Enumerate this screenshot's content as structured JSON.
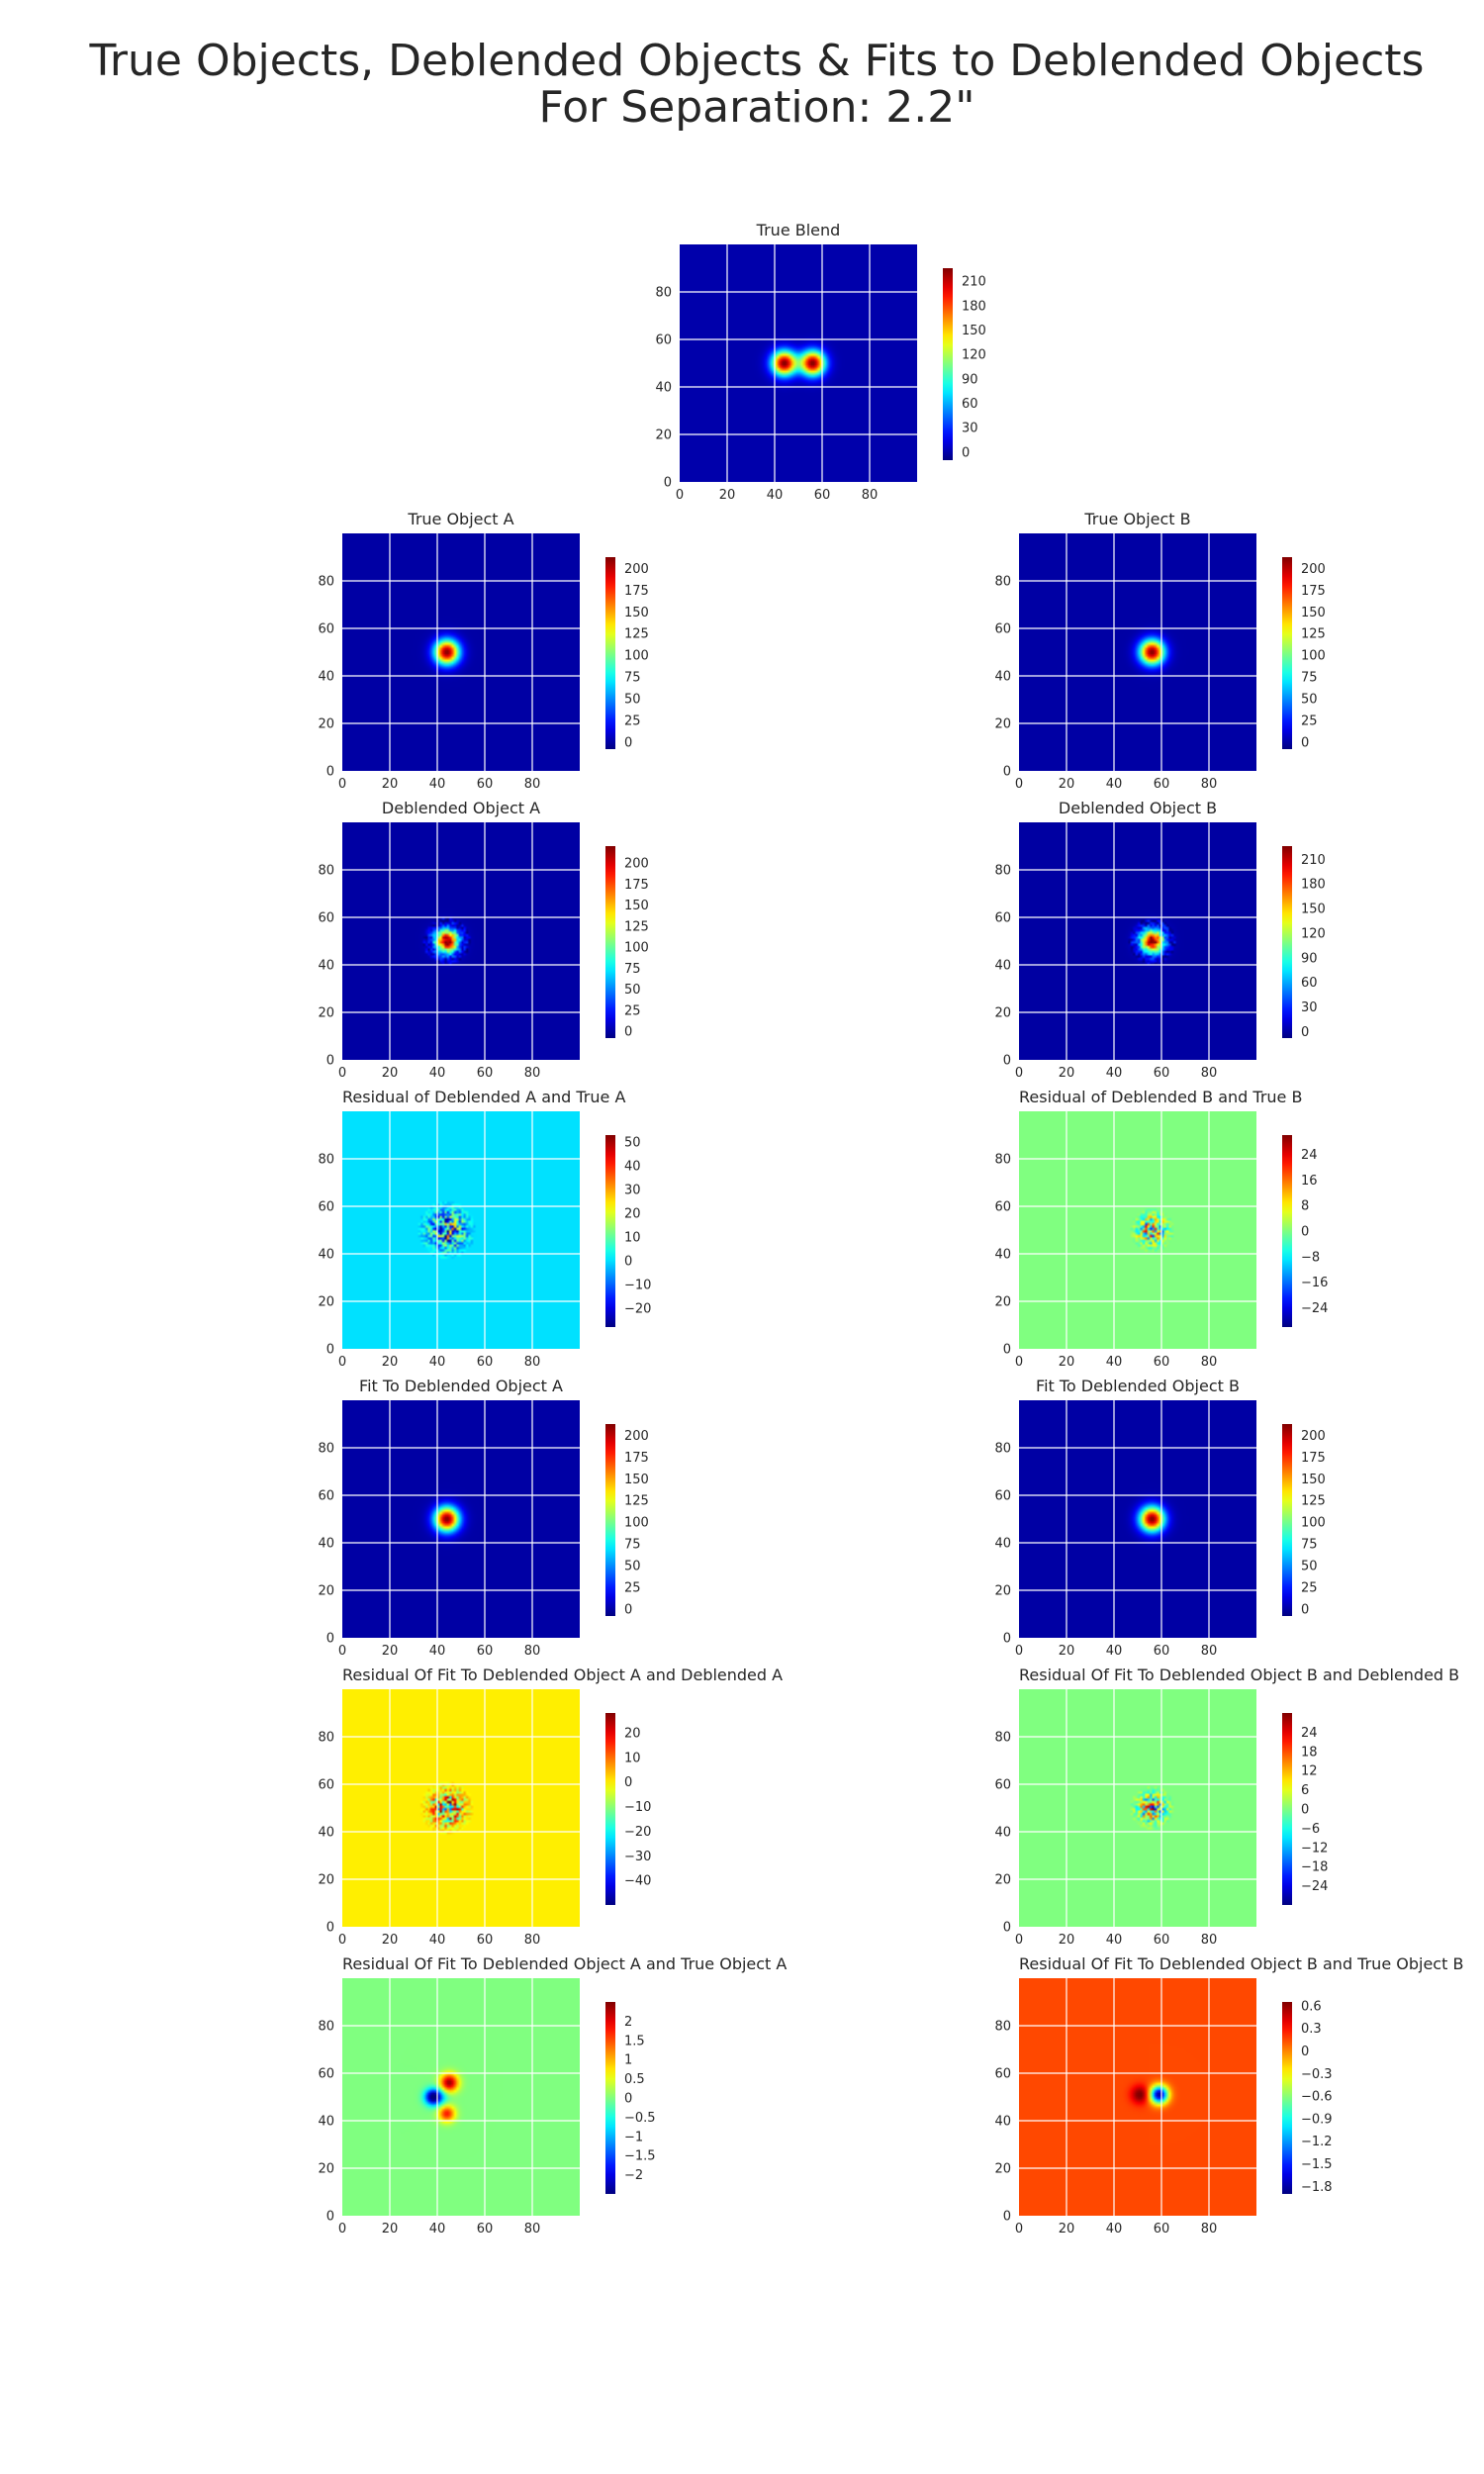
{
  "suptitle": {
    "line1": "True Objects, Deblended Objects & Fits to Deblended Objects",
    "line2": "For Separation: 2.2\""
  },
  "chart_data": [
    {
      "type": "heatmap",
      "title": "True Blend",
      "colormap": "jet",
      "xlim": [
        0,
        100
      ],
      "ylim": [
        0,
        100
      ],
      "xticks": [
        0,
        20,
        40,
        60,
        80
      ],
      "yticks": [
        0,
        20,
        40,
        60,
        80
      ],
      "colorbar": {
        "min": -10,
        "max": 226,
        "ticks": [
          0,
          30,
          60,
          90,
          120,
          150,
          180,
          210
        ]
      },
      "background": 0,
      "pattern": "double_blob",
      "centers": [
        [
          44,
          50
        ],
        [
          56,
          50
        ]
      ],
      "sigma": 3.6,
      "peak": 226
    },
    {
      "type": "heatmap",
      "title": "True Object A",
      "colormap": "jet",
      "xlim": [
        0,
        100
      ],
      "ylim": [
        0,
        100
      ],
      "xticks": [
        0,
        20,
        40,
        60,
        80
      ],
      "yticks": [
        0,
        20,
        40,
        60,
        80
      ],
      "colorbar": {
        "min": -8,
        "max": 213,
        "ticks": [
          0,
          25,
          50,
          75,
          100,
          125,
          150,
          175,
          200
        ]
      },
      "background": 0,
      "pattern": "blob",
      "centers": [
        [
          44,
          50
        ]
      ],
      "sigma": 3.6,
      "peak": 213
    },
    {
      "type": "heatmap",
      "title": "True Object B",
      "colormap": "jet",
      "xlim": [
        0,
        100
      ],
      "ylim": [
        0,
        100
      ],
      "xticks": [
        0,
        20,
        40,
        60,
        80
      ],
      "yticks": [
        0,
        20,
        40,
        60,
        80
      ],
      "colorbar": {
        "min": -8,
        "max": 213,
        "ticks": [
          0,
          25,
          50,
          75,
          100,
          125,
          150,
          175,
          200
        ]
      },
      "background": 0,
      "pattern": "blob",
      "centers": [
        [
          56,
          50
        ]
      ],
      "sigma": 3.6,
      "peak": 213
    },
    {
      "type": "heatmap",
      "title": "Deblended Object A",
      "colormap": "jet",
      "xlim": [
        0,
        100
      ],
      "ylim": [
        0,
        100
      ],
      "xticks": [
        0,
        20,
        40,
        60,
        80
      ],
      "yticks": [
        0,
        20,
        40,
        60,
        80
      ],
      "colorbar": {
        "min": -8,
        "max": 220,
        "ticks": [
          0,
          25,
          50,
          75,
          100,
          125,
          150,
          175,
          200
        ]
      },
      "background": 0,
      "pattern": "blob_noisy",
      "centers": [
        [
          44,
          50
        ]
      ],
      "sigma": 3.4,
      "peak": 220
    },
    {
      "type": "heatmap",
      "title": "Deblended Object B",
      "colormap": "jet",
      "xlim": [
        0,
        100
      ],
      "ylim": [
        0,
        100
      ],
      "xticks": [
        0,
        20,
        40,
        60,
        80
      ],
      "yticks": [
        0,
        20,
        40,
        60,
        80
      ],
      "colorbar": {
        "min": -8,
        "max": 226,
        "ticks": [
          0,
          30,
          60,
          90,
          120,
          150,
          180,
          210
        ]
      },
      "background": 0,
      "pattern": "blob_noisy",
      "centers": [
        [
          56,
          50
        ]
      ],
      "sigma": 3.4,
      "peak": 226
    },
    {
      "type": "heatmap",
      "title": "Residual of Deblended A and True A",
      "colormap": "jet",
      "xlim": [
        0,
        100
      ],
      "ylim": [
        0,
        100
      ],
      "xticks": [
        0,
        20,
        40,
        60,
        80
      ],
      "yticks": [
        0,
        20,
        40,
        60,
        80
      ],
      "colorbar": {
        "min": -28,
        "max": 53,
        "ticks": [
          -20,
          -10,
          0,
          10,
          20,
          30,
          40,
          50
        ]
      },
      "background": 0,
      "pattern": "noise",
      "centers": [
        [
          44,
          50
        ]
      ],
      "noise_radius": 12,
      "amplitude": 40
    },
    {
      "type": "heatmap",
      "title": "Residual of Deblended B and True B",
      "colormap": "jet",
      "xlim": [
        0,
        100
      ],
      "ylim": [
        0,
        100
      ],
      "xticks": [
        0,
        20,
        40,
        60,
        80
      ],
      "yticks": [
        0,
        20,
        40,
        60,
        80
      ],
      "colorbar": {
        "min": -30,
        "max": 30,
        "ticks": [
          -24,
          -16,
          -8,
          0,
          8,
          16,
          24
        ]
      },
      "background": 0,
      "pattern": "noise",
      "centers": [
        [
          56,
          50
        ]
      ],
      "noise_radius": 9,
      "amplitude": 30
    },
    {
      "type": "heatmap",
      "title": "Fit To Deblended Object A",
      "colormap": "jet",
      "xlim": [
        0,
        100
      ],
      "ylim": [
        0,
        100
      ],
      "xticks": [
        0,
        20,
        40,
        60,
        80
      ],
      "yticks": [
        0,
        20,
        40,
        60,
        80
      ],
      "colorbar": {
        "min": -8,
        "max": 213,
        "ticks": [
          0,
          25,
          50,
          75,
          100,
          125,
          150,
          175,
          200
        ]
      },
      "background": 0,
      "pattern": "blob",
      "centers": [
        [
          44,
          50
        ]
      ],
      "sigma": 3.6,
      "peak": 213
    },
    {
      "type": "heatmap",
      "title": "Fit To Deblended Object B",
      "colormap": "jet",
      "xlim": [
        0,
        100
      ],
      "ylim": [
        0,
        100
      ],
      "xticks": [
        0,
        20,
        40,
        60,
        80
      ],
      "yticks": [
        0,
        20,
        40,
        60,
        80
      ],
      "colorbar": {
        "min": -8,
        "max": 213,
        "ticks": [
          0,
          25,
          50,
          75,
          100,
          125,
          150,
          175,
          200
        ]
      },
      "background": 0,
      "pattern": "blob",
      "centers": [
        [
          56,
          50
        ]
      ],
      "sigma": 3.6,
      "peak": 213
    },
    {
      "type": "heatmap",
      "title": "Residual Of Fit To Deblended Object A and Deblended A",
      "colormap": "jet",
      "xlim": [
        0,
        100
      ],
      "ylim": [
        0,
        100
      ],
      "xticks": [
        0,
        20,
        40,
        60,
        80
      ],
      "yticks": [
        0,
        20,
        40,
        60,
        80
      ],
      "colorbar": {
        "min": -50,
        "max": 28,
        "ticks": [
          -40,
          -30,
          -20,
          -10,
          0,
          10,
          20
        ]
      },
      "background": 0,
      "pattern": "noise",
      "centers": [
        [
          44,
          50
        ]
      ],
      "noise_radius": 11,
      "amplitude": 38
    },
    {
      "type": "heatmap",
      "title": "Residual Of Fit To Deblended Object B and Deblended B",
      "colormap": "jet",
      "xlim": [
        0,
        100
      ],
      "ylim": [
        0,
        100
      ],
      "xticks": [
        0,
        20,
        40,
        60,
        80
      ],
      "yticks": [
        0,
        20,
        40,
        60,
        80
      ],
      "colorbar": {
        "min": -30,
        "max": 30,
        "ticks": [
          -24,
          -18,
          -12,
          -6,
          0,
          6,
          12,
          18,
          24
        ]
      },
      "background": 0,
      "pattern": "noise",
      "centers": [
        [
          56,
          50
        ]
      ],
      "noise_radius": 9,
      "amplitude": 30
    },
    {
      "type": "heatmap",
      "title": "Residual Of Fit To Deblended Object A and True Object A",
      "colormap": "jet",
      "xlim": [
        0,
        100
      ],
      "ylim": [
        0,
        100
      ],
      "xticks": [
        0,
        20,
        40,
        60,
        80
      ],
      "yticks": [
        0,
        20,
        40,
        60,
        80
      ],
      "colorbar": {
        "min": -2.5,
        "max": 2.5,
        "ticks": [
          -2.0,
          -1.5,
          -1.0,
          -0.5,
          0.0,
          0.5,
          1.0,
          1.5,
          2.0
        ]
      },
      "background": 0,
      "pattern": "lobes",
      "lobes": [
        {
          "x": 38,
          "y": 50,
          "a": -2.5,
          "s": 2.3
        },
        {
          "x": 45,
          "y": 56,
          "a": 2.4,
          "s": 2.6
        },
        {
          "x": 44,
          "y": 43,
          "a": 1.8,
          "s": 2.4
        },
        {
          "x": 41,
          "y": 50,
          "a": -0.8,
          "s": 2.5
        }
      ]
    },
    {
      "type": "heatmap",
      "title": "Residual Of Fit To Deblended Object B and True Object B",
      "colormap": "jet",
      "xlim": [
        0,
        100
      ],
      "ylim": [
        0,
        100
      ],
      "xticks": [
        0,
        20,
        40,
        60,
        80
      ],
      "yticks": [
        0,
        20,
        40,
        60,
        80
      ],
      "colorbar": {
        "min": -1.9,
        "max": 0.65,
        "ticks": [
          -1.8,
          -1.5,
          -1.2,
          -0.9,
          -0.6,
          -0.3,
          0.0,
          0.3,
          0.6
        ]
      },
      "background": 0.15,
      "pattern": "lobes",
      "lobes": [
        {
          "x": 51,
          "y": 51,
          "a": 0.55,
          "s": 2.6
        },
        {
          "x": 59,
          "y": 51,
          "a": -2.0,
          "s": 2.6
        }
      ]
    }
  ]
}
